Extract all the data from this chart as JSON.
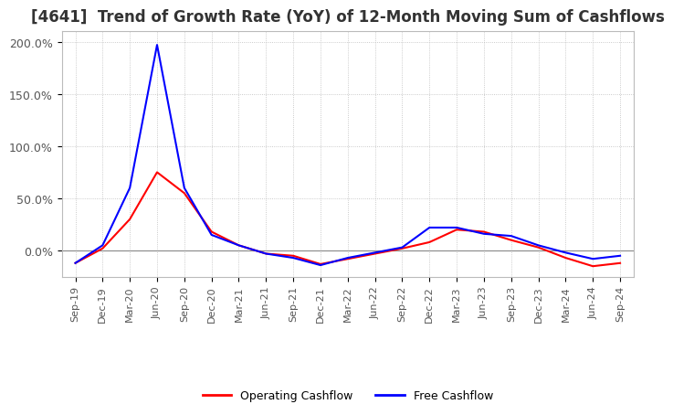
{
  "title": "[4641]  Trend of Growth Rate (YoY) of 12-Month Moving Sum of Cashflows",
  "title_fontsize": 12,
  "title_color": "#333333",
  "ylim": [
    -0.25,
    2.1
  ],
  "yticks": [
    0.0,
    0.5,
    1.0,
    1.5,
    2.0
  ],
  "ytick_labels": [
    "0.0%",
    "50.0%",
    "100.0%",
    "150.0%",
    "200.0%"
  ],
  "background_color": "#ffffff",
  "plot_bg_color": "#ffffff",
  "grid_color": "#bbbbbb",
  "dates": [
    "Sep-19",
    "Dec-19",
    "Mar-20",
    "Jun-20",
    "Sep-20",
    "Dec-20",
    "Mar-21",
    "Jun-21",
    "Sep-21",
    "Dec-21",
    "Mar-22",
    "Jun-22",
    "Sep-22",
    "Dec-22",
    "Mar-23",
    "Jun-23",
    "Sep-23",
    "Dec-23",
    "Mar-24",
    "Jun-24",
    "Sep-24"
  ],
  "operating_cashflow": [
    -0.12,
    0.02,
    0.3,
    0.75,
    0.55,
    0.18,
    0.05,
    -0.03,
    -0.05,
    -0.13,
    -0.08,
    -0.03,
    0.02,
    0.08,
    0.2,
    0.18,
    0.1,
    0.03,
    -0.07,
    -0.15,
    -0.12
  ],
  "free_cashflow": [
    -0.12,
    0.05,
    0.6,
    1.97,
    0.6,
    0.15,
    0.05,
    -0.03,
    -0.07,
    -0.14,
    -0.07,
    -0.02,
    0.03,
    0.22,
    0.22,
    0.16,
    0.14,
    0.05,
    -0.02,
    -0.08,
    -0.05
  ],
  "op_color": "#ff0000",
  "free_color": "#0000ff",
  "line_width": 1.5,
  "legend_labels": [
    "Operating Cashflow",
    "Free Cashflow"
  ],
  "xtick_labels": [
    "Sep-19",
    "Dec-19",
    "Mar-20",
    "Jun-20",
    "Sep-20",
    "Dec-20",
    "Mar-21",
    "Jun-21",
    "Sep-21",
    "Dec-21",
    "Mar-22",
    "Jun-22",
    "Sep-22",
    "Dec-22",
    "Mar-23",
    "Jun-23",
    "Sep-23",
    "Dec-23",
    "Mar-24",
    "Jun-24",
    "Sep-24"
  ]
}
